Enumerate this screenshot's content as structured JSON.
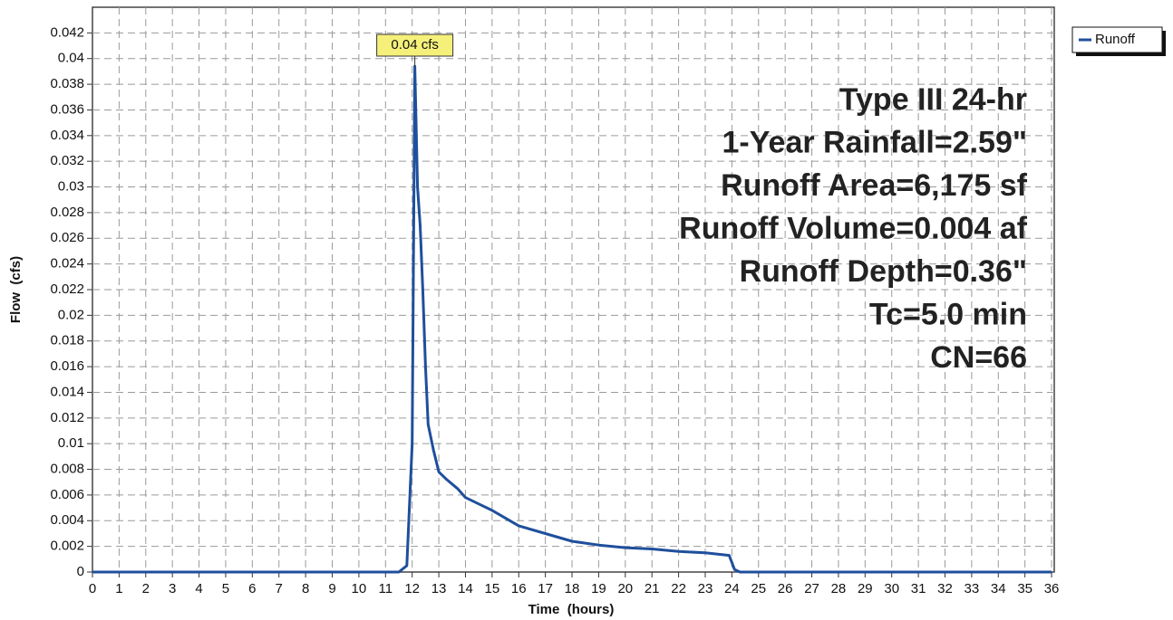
{
  "chart_data": {
    "type": "line",
    "xlabel": "Time  (hours)",
    "ylabel": "Flow  (cfs)",
    "x": [
      0,
      11.5,
      11.8,
      12.0,
      12.1,
      12.2,
      12.3,
      12.4,
      12.5,
      12.6,
      12.8,
      13.0,
      13.3,
      13.7,
      14.0,
      14.5,
      15.0,
      15.5,
      16.0,
      17.0,
      18.0,
      19.0,
      20.0,
      21.0,
      22.0,
      23.0,
      23.9,
      24.1,
      24.3,
      36
    ],
    "series": [
      {
        "name": "Runoff",
        "color": "#1f4f9c",
        "values": [
          0,
          0,
          0.0005,
          0.01,
          0.0394,
          0.03,
          0.027,
          0.022,
          0.016,
          0.0115,
          0.0095,
          0.0078,
          0.0072,
          0.0065,
          0.0058,
          0.0053,
          0.0048,
          0.0042,
          0.0036,
          0.003,
          0.0024,
          0.0021,
          0.0019,
          0.0018,
          0.0016,
          0.0015,
          0.0013,
          0.0002,
          0,
          0
        ]
      }
    ],
    "peak_label": "0.04 cfs",
    "annotations": [
      "Type III 24-hr",
      "1-Year Rainfall=2.59\"",
      "Runoff Area=6,175 sf",
      "Runoff Volume=0.004 af",
      "Runoff Depth=0.36\"",
      "Tc=5.0 min",
      "CN=66"
    ],
    "xlim": [
      0,
      36.1
    ],
    "ylim": [
      0,
      0.044
    ],
    "xticks": [
      0,
      1,
      2,
      3,
      4,
      5,
      6,
      7,
      8,
      9,
      10,
      11,
      12,
      13,
      14,
      15,
      16,
      17,
      18,
      19,
      20,
      21,
      22,
      23,
      24,
      25,
      26,
      27,
      28,
      29,
      30,
      31,
      32,
      33,
      34,
      35,
      36
    ],
    "yticks": [
      0,
      0.002,
      0.004,
      0.006,
      0.008,
      0.01,
      0.012,
      0.014,
      0.016,
      0.018,
      0.02,
      0.022,
      0.024,
      0.026,
      0.028,
      0.03,
      0.032,
      0.034,
      0.036,
      0.038,
      0.04,
      0.042
    ],
    "grid": true,
    "legend": "upper right"
  }
}
